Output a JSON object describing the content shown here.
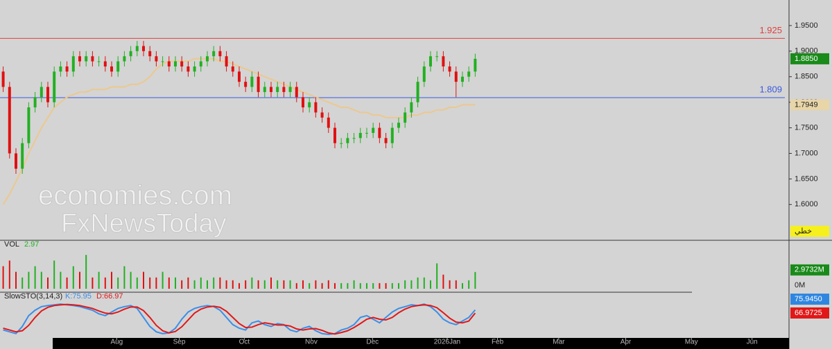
{
  "chart_data": {
    "type": "candlestick",
    "xlim": [
      -0.5,
      123.2
    ],
    "xticks": [
      {
        "value": 17.8,
        "label": "Aug"
      },
      {
        "value": 27.6,
        "label": "Sep"
      },
      {
        "value": 37.8,
        "label": "Oct"
      },
      {
        "value": 48.3,
        "label": "Nov"
      },
      {
        "value": 57.9,
        "label": "Dec"
      },
      {
        "value": 69.6,
        "label": "2026Jan"
      },
      {
        "value": 77.5,
        "label": "Feb"
      },
      {
        "value": 87.1,
        "label": "Mar"
      },
      {
        "value": 97.6,
        "label": "Apr"
      },
      {
        "value": 107.9,
        "label": "May"
      },
      {
        "value": 117.4,
        "label": "Jun"
      }
    ],
    "ylim": [
      1.53,
      2.0
    ],
    "yticks": [
      {
        "value": 1.95,
        "label": "1.9500"
      },
      {
        "value": 1.9,
        "label": "1.9000"
      },
      {
        "value": 1.85,
        "label": "1.8500"
      },
      {
        "value": 1.8,
        "label": "1.8000"
      },
      {
        "value": 1.75,
        "label": "1.7500"
      },
      {
        "value": 1.7,
        "label": "1.7000"
      },
      {
        "value": 1.65,
        "label": "1.6500"
      },
      {
        "value": 1.6,
        "label": "1.6000"
      }
    ],
    "up_color": "#22b022",
    "down_color": "#e01010",
    "open": [
      1.86,
      1.83,
      1.7,
      1.67,
      1.72,
      1.79,
      1.81,
      1.83,
      1.8,
      1.86,
      1.87,
      1.86,
      1.89,
      1.88,
      1.89,
      1.88,
      1.88,
      1.87,
      1.86,
      1.88,
      1.89,
      1.9,
      1.91,
      1.9,
      1.89,
      1.88,
      1.88,
      1.87,
      1.88,
      1.87,
      1.86,
      1.87,
      1.88,
      1.89,
      1.9,
      1.89,
      1.87,
      1.86,
      1.84,
      1.83,
      1.85,
      1.82,
      1.83,
      1.82,
      1.83,
      1.82,
      1.83,
      1.81,
      1.79,
      1.8,
      1.78,
      1.77,
      1.75,
      1.72,
      1.72,
      1.73,
      1.73,
      1.74,
      1.74,
      1.75,
      1.73,
      1.72,
      1.75,
      1.76,
      1.78,
      1.8,
      1.84,
      1.87,
      1.89,
      1.89,
      1.87,
      1.86,
      1.84,
      1.85,
      1.86
    ],
    "high": [
      1.87,
      1.84,
      1.71,
      1.73,
      1.8,
      1.82,
      1.84,
      1.84,
      1.87,
      1.88,
      1.88,
      1.9,
      1.9,
      1.9,
      1.9,
      1.89,
      1.89,
      1.88,
      1.89,
      1.9,
      1.91,
      1.92,
      1.92,
      1.91,
      1.9,
      1.89,
      1.89,
      1.89,
      1.89,
      1.88,
      1.88,
      1.89,
      1.9,
      1.91,
      1.91,
      1.9,
      1.88,
      1.87,
      1.85,
      1.86,
      1.86,
      1.84,
      1.84,
      1.84,
      1.84,
      1.84,
      1.84,
      1.82,
      1.81,
      1.81,
      1.79,
      1.78,
      1.76,
      1.73,
      1.74,
      1.74,
      1.75,
      1.75,
      1.76,
      1.76,
      1.74,
      1.76,
      1.77,
      1.79,
      1.81,
      1.85,
      1.88,
      1.9,
      1.9,
      1.9,
      1.88,
      1.87,
      1.86,
      1.87,
      1.895
    ],
    "low": [
      1.82,
      1.69,
      1.66,
      1.66,
      1.71,
      1.78,
      1.8,
      1.79,
      1.79,
      1.85,
      1.85,
      1.85,
      1.87,
      1.87,
      1.87,
      1.87,
      1.86,
      1.85,
      1.85,
      1.87,
      1.88,
      1.89,
      1.89,
      1.88,
      1.87,
      1.87,
      1.86,
      1.86,
      1.86,
      1.85,
      1.85,
      1.86,
      1.87,
      1.88,
      1.88,
      1.86,
      1.85,
      1.83,
      1.82,
      1.82,
      1.81,
      1.81,
      1.81,
      1.81,
      1.81,
      1.81,
      1.8,
      1.78,
      1.78,
      1.77,
      1.76,
      1.74,
      1.71,
      1.71,
      1.71,
      1.72,
      1.72,
      1.73,
      1.73,
      1.72,
      1.71,
      1.71,
      1.74,
      1.75,
      1.77,
      1.79,
      1.83,
      1.86,
      1.88,
      1.86,
      1.85,
      1.81,
      1.83,
      1.84,
      1.85
    ],
    "close": [
      1.83,
      1.7,
      1.67,
      1.72,
      1.79,
      1.81,
      1.83,
      1.8,
      1.86,
      1.87,
      1.86,
      1.89,
      1.88,
      1.89,
      1.88,
      1.88,
      1.87,
      1.86,
      1.88,
      1.89,
      1.9,
      1.91,
      1.9,
      1.89,
      1.88,
      1.88,
      1.87,
      1.88,
      1.87,
      1.86,
      1.87,
      1.88,
      1.89,
      1.9,
      1.89,
      1.87,
      1.86,
      1.84,
      1.83,
      1.85,
      1.82,
      1.83,
      1.82,
      1.83,
      1.82,
      1.83,
      1.81,
      1.79,
      1.8,
      1.78,
      1.77,
      1.75,
      1.72,
      1.72,
      1.73,
      1.73,
      1.74,
      1.74,
      1.75,
      1.73,
      1.72,
      1.75,
      1.76,
      1.78,
      1.8,
      1.84,
      1.87,
      1.89,
      1.89,
      1.87,
      1.86,
      1.84,
      1.85,
      1.86,
      1.885
    ],
    "ma": {
      "color": "#ecc88e",
      "values": [
        1.6,
        1.62,
        1.645,
        1.67,
        1.7,
        1.725,
        1.75,
        1.77,
        1.79,
        1.8,
        1.81,
        1.815,
        1.82,
        1.82,
        1.825,
        1.825,
        1.825,
        1.83,
        1.83,
        1.83,
        1.835,
        1.835,
        1.84,
        1.85,
        1.865,
        1.875,
        1.88,
        1.88,
        1.88,
        1.88,
        1.885,
        1.885,
        1.885,
        1.885,
        1.88,
        1.88,
        1.875,
        1.87,
        1.865,
        1.86,
        1.855,
        1.85,
        1.845,
        1.84,
        1.835,
        1.83,
        1.825,
        1.82,
        1.815,
        1.81,
        1.805,
        1.8,
        1.795,
        1.79,
        1.79,
        1.785,
        1.78,
        1.78,
        1.775,
        1.775,
        1.77,
        1.77,
        1.77,
        1.77,
        1.775,
        1.775,
        1.78,
        1.78,
        1.785,
        1.785,
        1.79,
        1.79,
        1.795,
        1.795,
        1.7949
      ]
    },
    "levels": [
      {
        "value": 1.925,
        "color": "#e04040"
      },
      {
        "value": 1.809,
        "color": "#3a5ae0"
      }
    ],
    "last_price_label": "1.8850",
    "ma_label": "1.7949",
    "mode_label": "خطي",
    "watermark": [
      "economies.com",
      "FxNewsToday"
    ],
    "volume": {
      "title": "VOL",
      "last_label": "2.97",
      "axis_label": "2.9732M",
      "zero_label": "0M",
      "ylim": [
        0,
        7
      ],
      "values": [
        4,
        5,
        3,
        2,
        3,
        4,
        3,
        2,
        5,
        3,
        2,
        4,
        3,
        6,
        2,
        3,
        2,
        3,
        2,
        4,
        3,
        2,
        3,
        2,
        2,
        3,
        2,
        2,
        1.5,
        2,
        1.5,
        2,
        1.5,
        2,
        2,
        1.5,
        1.5,
        1,
        1.5,
        2,
        1.5,
        1.5,
        2,
        1.5,
        1.5,
        1.5,
        1,
        1.5,
        1,
        1.5,
        1,
        1.5,
        1,
        1,
        1,
        1.5,
        1,
        1,
        1,
        1,
        1,
        1,
        1,
        1.5,
        1.5,
        2,
        2,
        1.5,
        4.5,
        2.5,
        1.5,
        1.5,
        1,
        1.5,
        2.97
      ]
    },
    "stochastic": {
      "title": "SlowSTO(3,14,3)",
      "ylim": [
        0,
        100
      ],
      "k": {
        "label": "K:75.95",
        "axis_label": "75.9450",
        "color": "#3a8ee8",
        "values": [
          20,
          15,
          10,
          30,
          60,
          75,
          85,
          88,
          90,
          92,
          90,
          88,
          85,
          80,
          75,
          65,
          60,
          70,
          80,
          85,
          88,
          80,
          55,
          30,
          15,
          10,
          12,
          25,
          50,
          70,
          80,
          85,
          88,
          85,
          75,
          55,
          35,
          25,
          20,
          40,
          45,
          35,
          30,
          38,
          35,
          20,
          15,
          25,
          30,
          18,
          10,
          8,
          10,
          20,
          25,
          35,
          55,
          60,
          50,
          40,
          55,
          70,
          80,
          85,
          90,
          88,
          92,
          85,
          70,
          50,
          40,
          35,
          45,
          55,
          75.95
        ]
      },
      "d": {
        "label": "D:66.97",
        "axis_label": "66.9725",
        "color": "#e01818",
        "values": [
          25,
          20,
          15,
          18,
          33,
          55,
          73,
          83,
          88,
          90,
          91,
          90,
          88,
          84,
          80,
          73,
          67,
          65,
          70,
          78,
          84,
          84,
          74,
          55,
          33,
          18,
          12,
          16,
          29,
          48,
          67,
          78,
          84,
          86,
          83,
          72,
          55,
          38,
          27,
          28,
          35,
          40,
          37,
          34,
          34,
          31,
          23,
          20,
          23,
          24,
          19,
          12,
          9,
          13,
          18,
          27,
          38,
          50,
          55,
          50,
          48,
          55,
          68,
          78,
          85,
          88,
          90,
          88,
          82,
          68,
          53,
          42,
          40,
          45,
          66.97
        ]
      }
    }
  }
}
